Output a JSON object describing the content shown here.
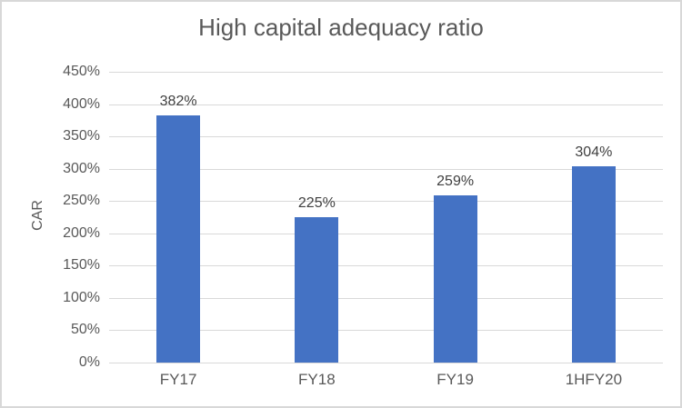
{
  "chart_data": {
    "type": "bar",
    "title": "High capital adequacy ratio",
    "xlabel": "",
    "ylabel": "CAR",
    "categories": [
      "FY17",
      "FY18",
      "FY19",
      "1HFY20"
    ],
    "values": [
      382,
      225,
      259,
      304
    ],
    "value_labels": [
      "382%",
      "225%",
      "259%",
      "304%"
    ],
    "y_tick_labels": [
      "0%",
      "50%",
      "100%",
      "150%",
      "200%",
      "250%",
      "300%",
      "350%",
      "400%",
      "450%"
    ],
    "ylim": [
      0,
      450
    ],
    "y_step": 50,
    "grid": true,
    "legend_position": "none",
    "bar_color": "#4472C4",
    "grid_color": "#D9D9D9",
    "axis_text_color": "#595959",
    "value_label_color": "#404040",
    "title_color": "#595959",
    "frame_border_color": "#D8D8D8"
  }
}
